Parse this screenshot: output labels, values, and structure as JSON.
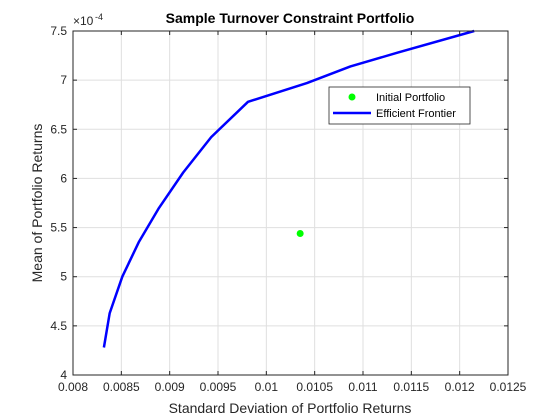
{
  "chart_data": {
    "type": "line",
    "title": "Sample Turnover Constraint Portfolio",
    "xlabel": "Standard Deviation of Portfolio Returns",
    "ylabel": "Mean of Portfolio Returns",
    "y_exponent_label": "×10^{-4}",
    "xlim": [
      0.008,
      0.0125
    ],
    "ylim": [
      4,
      7.5
    ],
    "y_scale_factor": "1e-4",
    "x_ticks": [
      0.008,
      0.0085,
      0.009,
      0.0095,
      0.01,
      0.0105,
      0.011,
      0.0115,
      0.012,
      0.0125
    ],
    "x_tick_labels": [
      "0.008",
      "0.0085",
      "0.009",
      "0.0095",
      "0.01",
      "0.0105",
      "0.011",
      "0.0115",
      "0.012",
      "0.0125"
    ],
    "y_ticks": [
      4,
      4.5,
      5,
      5.5,
      6,
      6.5,
      7,
      7.5
    ],
    "y_tick_labels": [
      "4",
      "4.5",
      "5",
      "5.5",
      "6",
      "6.5",
      "7",
      "7.5"
    ],
    "grid": true,
    "legend_position": "top-right (inside)",
    "series": [
      {
        "name": "Efficient Frontier",
        "type": "line",
        "color": "#0000ff",
        "x": [
          0.00832,
          0.00838,
          0.00851,
          0.00868,
          0.00889,
          0.00914,
          0.00943,
          0.00981,
          0.01042,
          0.01087,
          0.01136,
          0.01215
        ],
        "y": [
          4.28,
          4.63,
          5.0,
          5.35,
          5.7,
          6.06,
          6.42,
          6.78,
          6.97,
          7.14,
          7.28,
          7.5
        ]
      },
      {
        "name": "Initial Portfolio",
        "type": "scatter",
        "color": "#00ff00",
        "x": [
          0.01035
        ],
        "y": [
          5.44
        ]
      }
    ]
  }
}
